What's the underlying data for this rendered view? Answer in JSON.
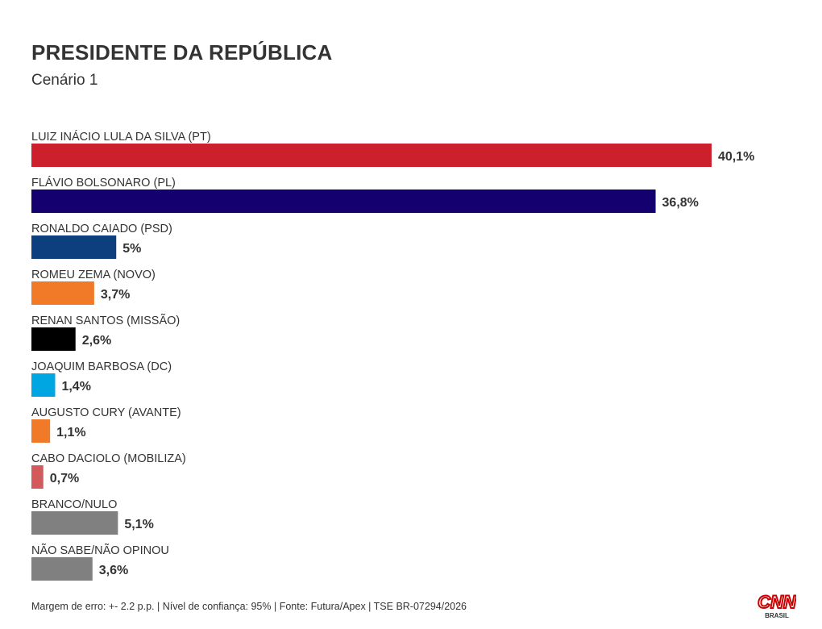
{
  "title": "PRESIDENTE DA REPÚBLICA",
  "subtitle": "Cenário 1",
  "footnote": "Margem de erro: +- 2.2 p.p. | Nível de confiança: 95% | Fonte: Futura/Apex | TSE BR-07294/2026",
  "logo": {
    "name": "CNN",
    "sub": "BRASIL",
    "color": "#cc0000"
  },
  "chart_data": {
    "type": "bar",
    "orientation": "horizontal",
    "title": "PRESIDENTE DA REPÚBLICA",
    "subtitle": "Cenário 1",
    "categories": [
      "LUIZ INÁCIO LULA DA SILVA (PT)",
      "FLÁVIO BOLSONARO (PL)",
      "RONALDO CAIADO (PSD)",
      "ROMEU ZEMA (NOVO)",
      "RENAN SANTOS (MISSÃO)",
      "JOAQUIM BARBOSA (DC)",
      "AUGUSTO CURY (AVANTE)",
      "CABO DACIOLO (MOBILIZA)",
      "BRANCO/NULO",
      "NÃO SABE/NÃO OPINOU"
    ],
    "values": [
      40.1,
      36.8,
      5,
      3.7,
      2.6,
      1.4,
      1.1,
      0.7,
      5.1,
      3.6
    ],
    "value_labels": [
      "40,1%",
      "36,8%",
      "5%",
      "3,7%",
      "2,6%",
      "1,4%",
      "1,1%",
      "0,7%",
      "5,1%",
      "3,6%"
    ],
    "colors": [
      "#cc202c",
      "#14006e",
      "#0d3f7f",
      "#f07a28",
      "#000000",
      "#00a6e2",
      "#f07a28",
      "#d25a5a",
      "#808080",
      "#808080"
    ],
    "xlim": [
      0,
      40.1
    ],
    "grid": false,
    "legend": "none"
  }
}
